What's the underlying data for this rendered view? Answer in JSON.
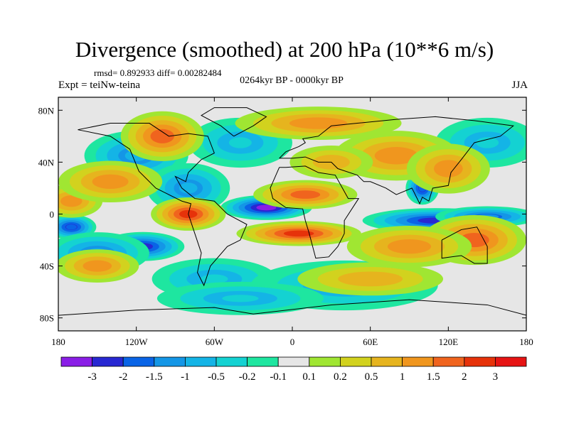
{
  "chart_data": {
    "type": "heatmap",
    "title": "Divergence (smoothed) at 200 hPa (10**6 m/s)",
    "stats": "rmsd= 0.892933 diff= 0.00282484",
    "experiment": "Expt = teiNw-teina",
    "period": "0264kyr BP - 0000kyr BP",
    "season": "JJA",
    "x_ticks": [
      "180",
      "120W",
      "60W",
      "0",
      "60E",
      "120E",
      "180"
    ],
    "x_tick_values": [
      -180,
      -120,
      -60,
      0,
      60,
      120,
      180
    ],
    "y_ticks": [
      "80N",
      "40N",
      "0",
      "40S",
      "80S"
    ],
    "y_tick_values": [
      80,
      40,
      0,
      -40,
      -80
    ],
    "xlim": [
      -180,
      180
    ],
    "ylim": [
      -90,
      90
    ],
    "colorbar_labels": [
      "-3",
      "-2",
      "-1.5",
      "-1",
      "-0.5",
      "-0.2",
      "-0.1",
      "0.1",
      "0.2",
      "0.5",
      "1",
      "1.5",
      "2",
      "3"
    ],
    "colorbar_colors": [
      "#8a1ee6",
      "#2828d2",
      "#0a64e6",
      "#1496e6",
      "#14b4e6",
      "#14d2d2",
      "#1ee6a0",
      "#e6e6e6",
      "#a0e632",
      "#d2d21e",
      "#e6b41e",
      "#f0961e",
      "#f0641e",
      "#e6320a",
      "#e61414"
    ],
    "features": [
      {
        "lon": -20,
        "lat": 5,
        "value": -3.2,
        "rx": 22,
        "ry": 6
      },
      {
        "lon": 110,
        "lat": -5,
        "value": -2.5,
        "rx": 35,
        "ry": 6
      },
      {
        "lon": 150,
        "lat": -2,
        "value": -1.5,
        "rx": 25,
        "ry": 5
      },
      {
        "lon": -170,
        "lat": -10,
        "value": -2.0,
        "rx": 12,
        "ry": 6
      },
      {
        "lon": -115,
        "lat": -25,
        "value": -2.2,
        "rx": 20,
        "ry": 7
      },
      {
        "lon": -150,
        "lat": -30,
        "value": -1.0,
        "rx": 25,
        "ry": 10
      },
      {
        "lon": -120,
        "lat": 45,
        "value": -1.0,
        "rx": 25,
        "ry": 12
      },
      {
        "lon": -80,
        "lat": 20,
        "value": -1.0,
        "rx": 20,
        "ry": 12
      },
      {
        "lon": -40,
        "lat": 55,
        "value": -0.5,
        "rx": 25,
        "ry": 12
      },
      {
        "lon": 100,
        "lat": 20,
        "value": -2.0,
        "rx": 8,
        "ry": 8
      },
      {
        "lon": -60,
        "lat": -50,
        "value": -0.5,
        "rx": 30,
        "ry": 10
      },
      {
        "lon": 40,
        "lat": -55,
        "value": -0.5,
        "rx": 45,
        "ry": 12
      },
      {
        "lon": -40,
        "lat": -65,
        "value": -0.5,
        "rx": 40,
        "ry": 8
      },
      {
        "lon": 150,
        "lat": 55,
        "value": -0.5,
        "rx": 25,
        "ry": 12
      },
      {
        "lon": -80,
        "lat": 0,
        "value": 2.0,
        "rx": 18,
        "ry": 8
      },
      {
        "lon": 10,
        "lat": 15,
        "value": 1.8,
        "rx": 25,
        "ry": 7
      },
      {
        "lon": 5,
        "lat": -15,
        "value": 2.0,
        "rx": 30,
        "ry": 6
      },
      {
        "lon": 140,
        "lat": -20,
        "value": 1.5,
        "rx": 25,
        "ry": 12
      },
      {
        "lon": 90,
        "lat": -25,
        "value": 1.0,
        "rx": 30,
        "ry": 10
      },
      {
        "lon": -170,
        "lat": 10,
        "value": 1.0,
        "rx": 15,
        "ry": 8
      },
      {
        "lon": -140,
        "lat": 25,
        "value": 1.0,
        "rx": 25,
        "ry": 10
      },
      {
        "lon": -100,
        "lat": 60,
        "value": 1.5,
        "rx": 20,
        "ry": 12
      },
      {
        "lon": 80,
        "lat": 45,
        "value": 1.2,
        "rx": 30,
        "ry": 12
      },
      {
        "lon": 120,
        "lat": 35,
        "value": 1.2,
        "rx": 20,
        "ry": 12
      },
      {
        "lon": 20,
        "lat": 70,
        "value": 1.0,
        "rx": 40,
        "ry": 8
      },
      {
        "lon": -150,
        "lat": -40,
        "value": 1.0,
        "rx": 20,
        "ry": 8
      },
      {
        "lon": 30,
        "lat": 40,
        "value": 0.8,
        "rx": 20,
        "ry": 8
      },
      {
        "lon": 60,
        "lat": -50,
        "value": 0.5,
        "rx": 35,
        "ry": 8
      }
    ]
  }
}
